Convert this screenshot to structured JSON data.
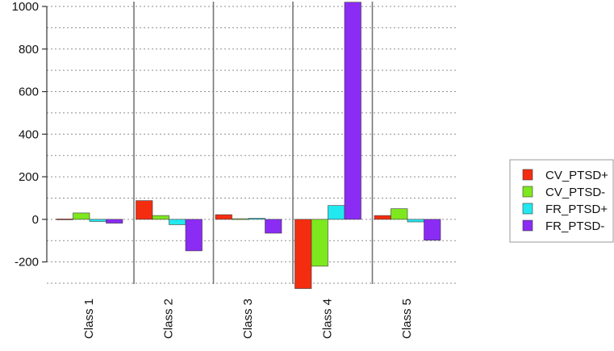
{
  "chart_data": {
    "type": "bar",
    "categories": [
      "Class 1",
      "Class 2",
      "Class 3",
      "Class 4",
      "Class 5"
    ],
    "series": [
      {
        "name": "CV_PTSD+",
        "color": "#f52d10",
        "values": [
          2,
          88,
          22,
          -325,
          18
        ]
      },
      {
        "name": "CV_PTSD-",
        "color": "#7ee81e",
        "values": [
          30,
          18,
          3,
          -220,
          50
        ]
      },
      {
        "name": "FR_PTSD+",
        "color": "#22e8ef",
        "values": [
          -10,
          -25,
          5,
          65,
          -12
        ]
      },
      {
        "name": "FR_PTSD-",
        "color": "#8a2cf3",
        "values": [
          -18,
          -148,
          -65,
          1020,
          -98
        ]
      }
    ],
    "title": "",
    "xlabel": "",
    "ylabel": "",
    "ylim": [
      -300,
      1000
    ],
    "yticks": [
      -200,
      0,
      200,
      400,
      600,
      800,
      1000
    ],
    "grid": "dotted-horizontal",
    "legend": "right"
  }
}
